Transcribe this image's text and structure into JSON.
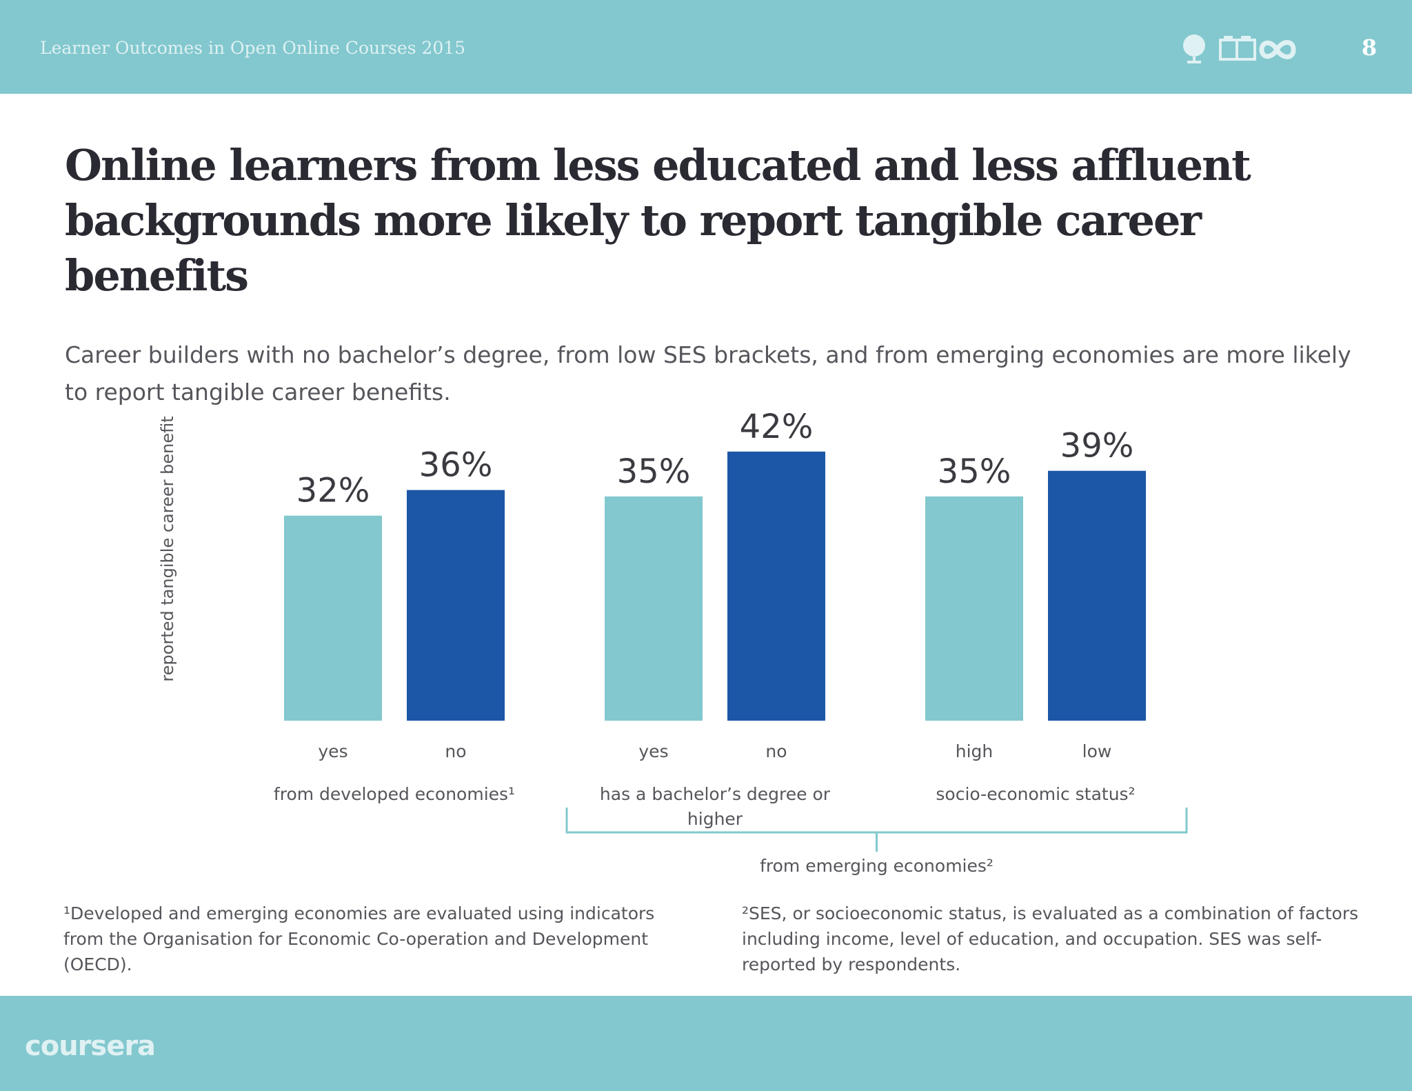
{
  "header": {
    "doc_title": "Learner Outcomes in Open Online Courses 2015",
    "page_number": "8",
    "icons": [
      "globe-icon",
      "open-book-icon",
      "infinity-icon"
    ]
  },
  "main": {
    "title": "Online learners from less educated and less affluent backgrounds more likely to report tangible career benefits",
    "subtitle": "Career builders with no bachelor’s degree, from low SES brackets, and from emerging economies are more likely to report tangible career benefits."
  },
  "chart_data": {
    "type": "bar",
    "ylabel": "reported tangible career benefit",
    "colors": {
      "light": "#82c8ce",
      "dark": "#1b57a6",
      "bracket": "#82c8ce"
    },
    "groups": [
      {
        "label": "from developed economies¹",
        "bars": [
          {
            "category": "yes",
            "value": 32,
            "label": "32%",
            "color": "light"
          },
          {
            "category": "no",
            "value": 36,
            "label": "36%",
            "color": "dark"
          }
        ]
      },
      {
        "label": "has a bachelor’s degree or higher",
        "bars": [
          {
            "category": "yes",
            "value": 35,
            "label": "35%",
            "color": "light"
          },
          {
            "category": "no",
            "value": 42,
            "label": "42%",
            "color": "dark"
          }
        ]
      },
      {
        "label": "socio-economic status²",
        "bars": [
          {
            "category": "high",
            "value": 35,
            "label": "35%",
            "color": "light"
          },
          {
            "category": "low",
            "value": 39,
            "label": "39%",
            "color": "dark"
          }
        ]
      }
    ],
    "bracket_label": "from emerging economies²"
  },
  "footnotes": {
    "note1": "¹Developed and emerging economies are evaluated using indicators from the Organisation for Economic Co-operation and Development (OECD).",
    "note2": "²SES, or socioeconomic status, is evaluated as a combination of factors including income, level of education, and occupation. SES was self-reported by respondents."
  },
  "footer": {
    "logo_text": "coursera"
  }
}
